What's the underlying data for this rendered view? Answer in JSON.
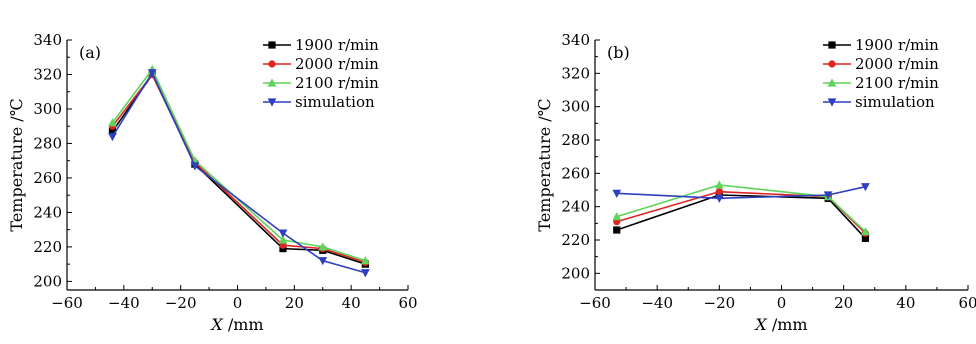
{
  "colors": {
    "axis": "#000000",
    "series_1900": "#000000",
    "series_2000": "#e02424",
    "series_2100": "#5fd35a",
    "series_sim": "#2e3fbf"
  },
  "chart_data": [
    {
      "type": "line",
      "panel_label": "(a)",
      "xlabel_var": "X",
      "xlabel_unit": "/mm",
      "ylabel": "Temperature /℃",
      "xlim": [
        -60,
        60
      ],
      "ylim": [
        195,
        340
      ],
      "xticks": [
        -60,
        -40,
        -20,
        0,
        20,
        40,
        60
      ],
      "yticks": [
        200,
        220,
        240,
        260,
        280,
        300,
        320,
        340
      ],
      "legend_position": "top-right",
      "grid": false,
      "series": [
        {
          "name": "1900 r/min",
          "marker": "square",
          "color": "#000000",
          "x": [
            -44,
            -30,
            -15,
            16,
            30,
            45
          ],
          "y": [
            287,
            320,
            268,
            219,
            218,
            210
          ]
        },
        {
          "name": "2000 r/min",
          "marker": "circle",
          "color": "#e02424",
          "x": [
            -44,
            -30,
            -15,
            16,
            30,
            45
          ],
          "y": [
            290,
            320,
            269,
            221,
            219,
            211
          ]
        },
        {
          "name": "2100 r/min",
          "marker": "triangle-up",
          "color": "#5fd35a",
          "x": [
            -44,
            -30,
            -15,
            16,
            30,
            45
          ],
          "y": [
            292,
            323,
            270,
            224,
            220,
            212
          ]
        },
        {
          "name": "simulation",
          "marker": "triangle-down",
          "color": "#2e3fbf",
          "x": [
            -44,
            -30,
            -15,
            16,
            30,
            45
          ],
          "y": [
            284,
            321,
            267,
            228,
            212,
            205
          ]
        }
      ]
    },
    {
      "type": "line",
      "panel_label": "(b)",
      "xlabel_var": "X",
      "xlabel_unit": "/mm",
      "ylabel": "Temperature /℃",
      "xlim": [
        -60,
        60
      ],
      "ylim": [
        190,
        340
      ],
      "xticks": [
        -60,
        -40,
        -20,
        0,
        20,
        40,
        60
      ],
      "yticks": [
        200,
        220,
        240,
        260,
        280,
        300,
        320,
        340
      ],
      "legend_position": "top-right",
      "grid": false,
      "series": [
        {
          "name": "1900 r/min",
          "marker": "square",
          "color": "#000000",
          "x": [
            -53,
            -20,
            15,
            27
          ],
          "y": [
            226,
            247,
            245,
            221
          ]
        },
        {
          "name": "2000 r/min",
          "marker": "circle",
          "color": "#e02424",
          "x": [
            -53,
            -20,
            15,
            27
          ],
          "y": [
            231,
            249,
            246,
            224
          ]
        },
        {
          "name": "2100 r/min",
          "marker": "triangle-up",
          "color": "#5fd35a",
          "x": [
            -53,
            -20,
            15,
            27
          ],
          "y": [
            234,
            253,
            246,
            225
          ]
        },
        {
          "name": "simulation",
          "marker": "triangle-down",
          "color": "#2e3fbf",
          "x": [
            -53,
            -20,
            15,
            27
          ],
          "y": [
            248,
            245,
            247,
            252
          ]
        }
      ]
    }
  ]
}
